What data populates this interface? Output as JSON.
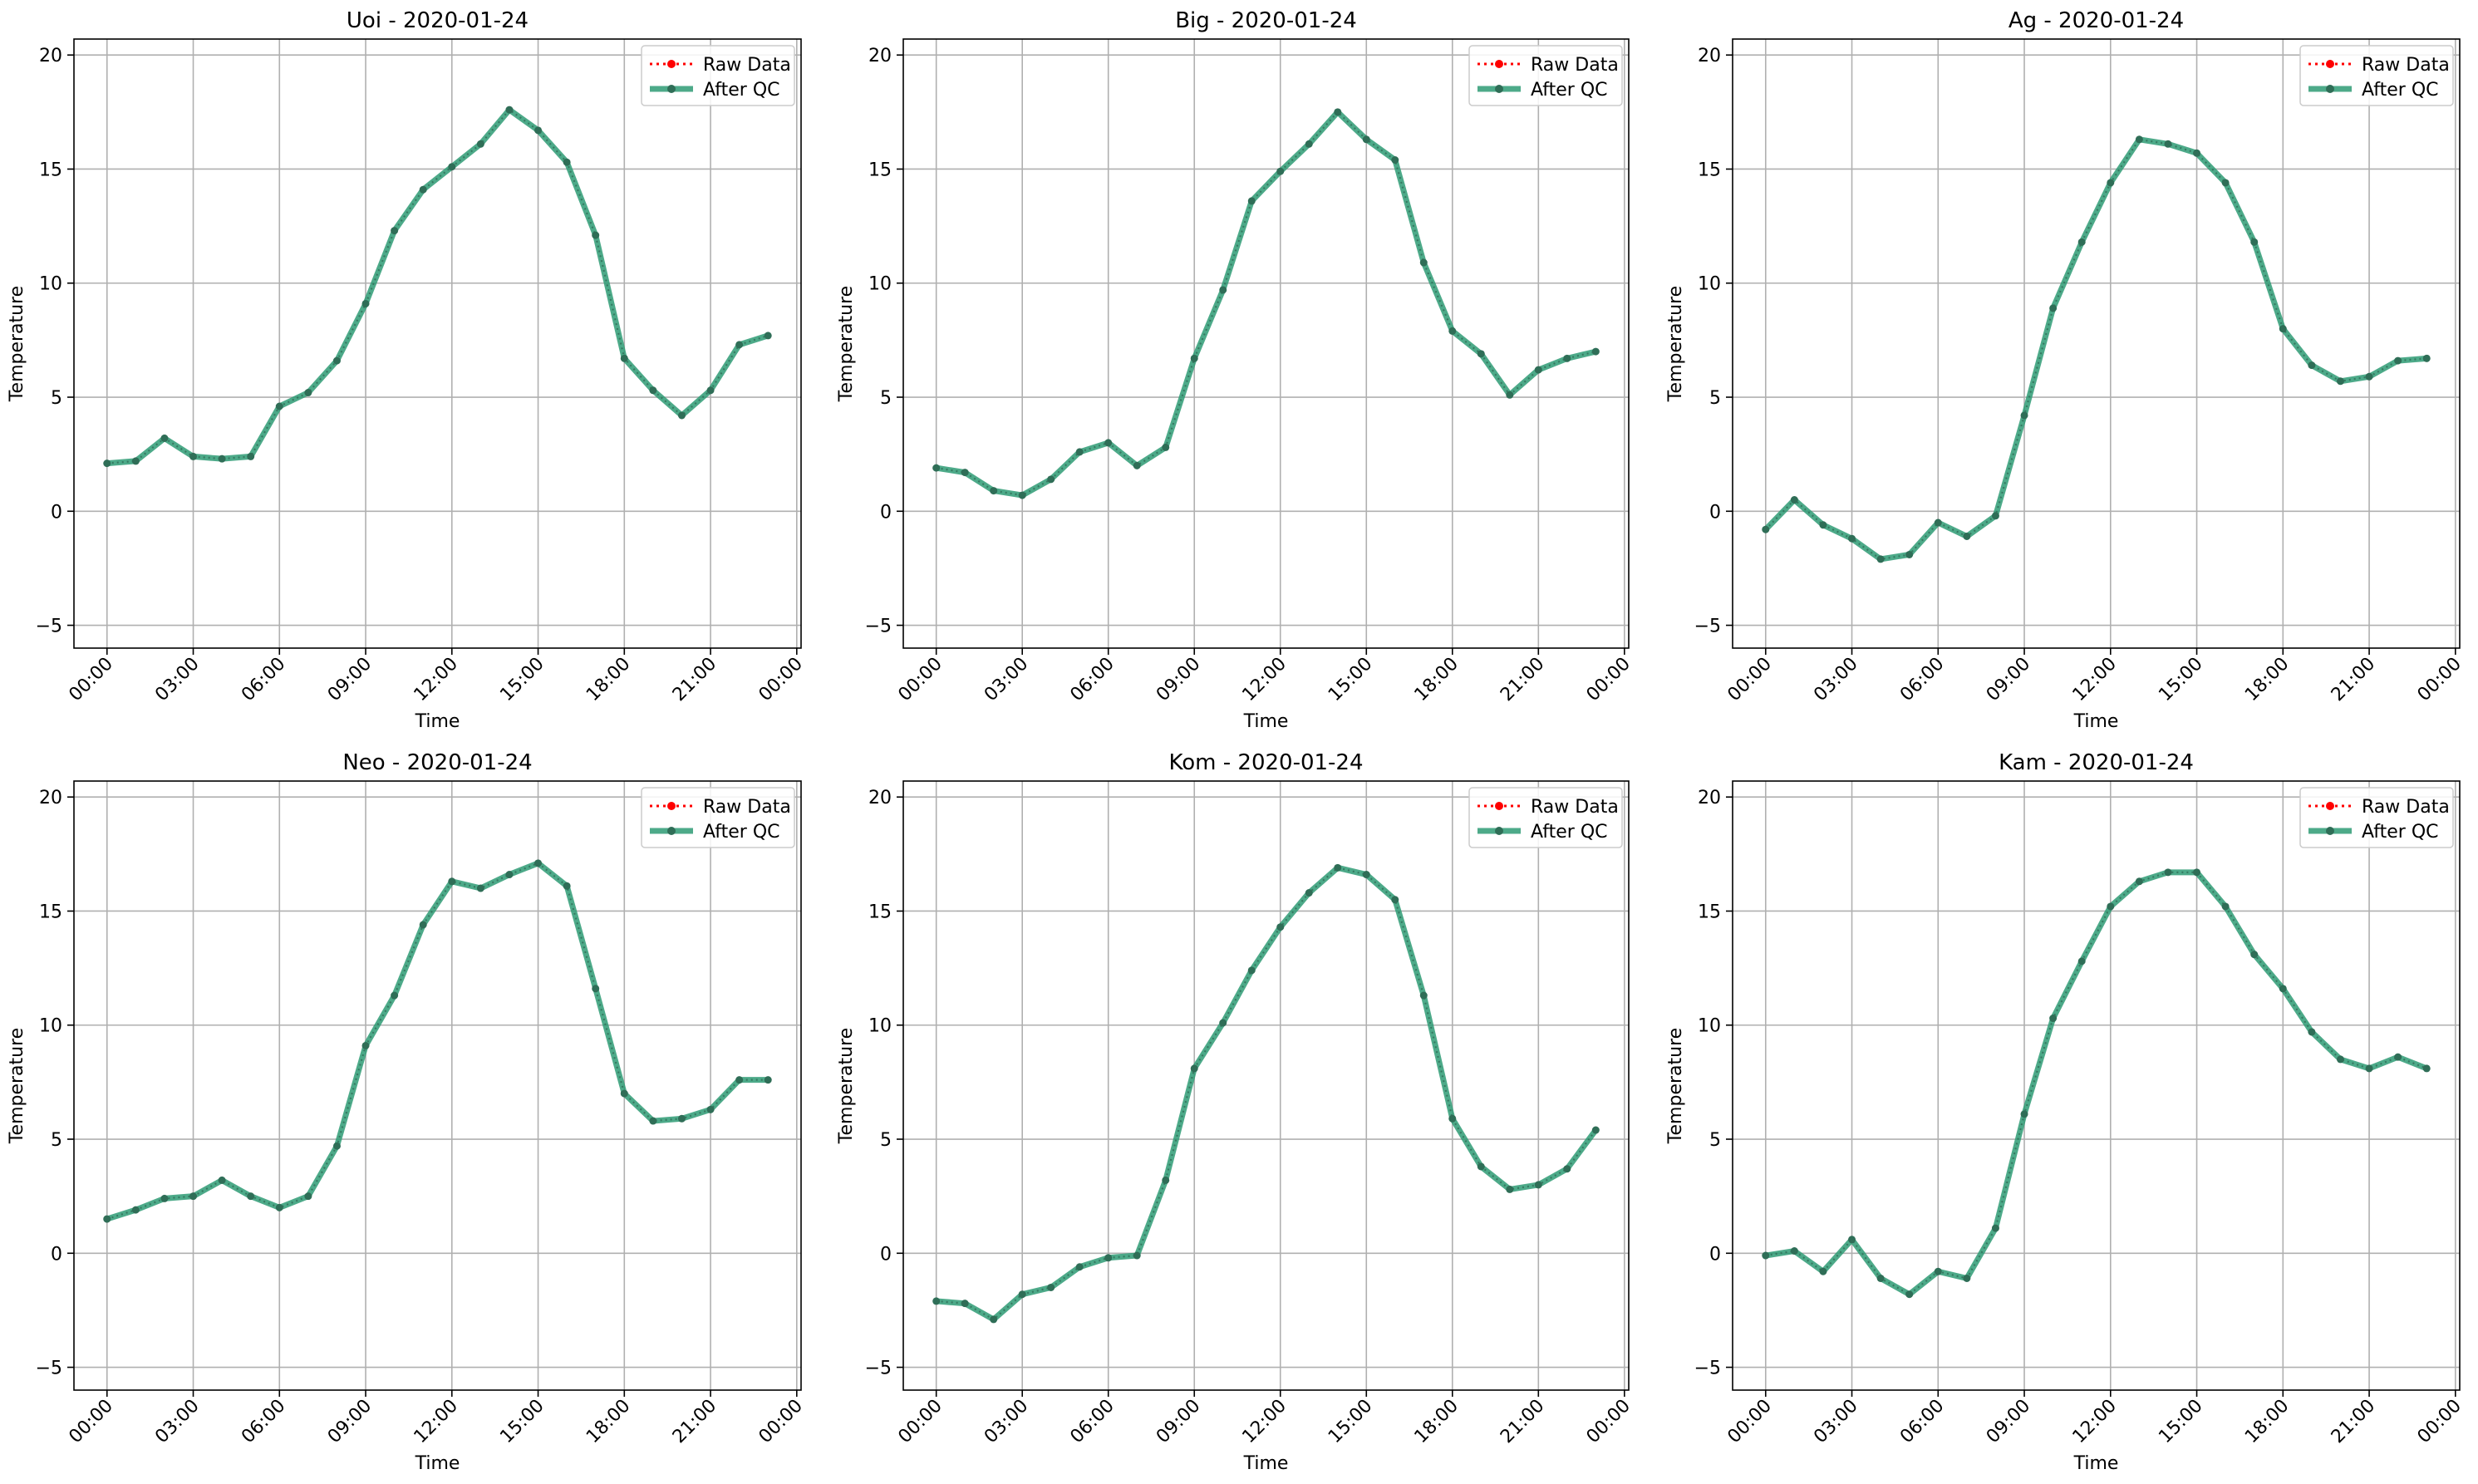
{
  "figure": {
    "x_ticks": [
      "00:00",
      "03:00",
      "06:00",
      "09:00",
      "12:00",
      "15:00",
      "18:00",
      "21:00",
      "00:00"
    ],
    "y_ticks": [
      "−5",
      "0",
      "5",
      "10",
      "15",
      "20"
    ],
    "xlabel": "Time",
    "ylabel": "Temperature",
    "legend": [
      "Raw Data",
      "After QC"
    ],
    "colors": {
      "raw": "#ff0000",
      "qc": "#2e9b74",
      "qc_marker": "#2f6e57",
      "grid": "#b0b0b0"
    }
  },
  "chart_data": [
    {
      "type": "line",
      "title": "Uoi - 2020-01-24",
      "xlabel": "Time",
      "ylabel": "Temperature",
      "x": [
        "00:00",
        "01:00",
        "02:00",
        "03:00",
        "04:00",
        "05:00",
        "06:00",
        "07:00",
        "08:00",
        "09:00",
        "10:00",
        "11:00",
        "12:00",
        "13:00",
        "14:00",
        "15:00",
        "16:00",
        "17:00",
        "18:00",
        "19:00",
        "20:00",
        "21:00",
        "22:00",
        "23:00"
      ],
      "xlim": [
        "00:00",
        "00:00 (next day)"
      ],
      "ylim": [
        -6,
        20.7
      ],
      "grid": true,
      "legend_position": "top-right",
      "series": [
        {
          "name": "Raw Data",
          "style": "dotted",
          "color": "#ff0000",
          "values": [
            2.1,
            2.2,
            3.2,
            2.4,
            2.3,
            2.4,
            4.6,
            5.2,
            6.6,
            9.1,
            12.3,
            14.1,
            15.1,
            16.1,
            17.6,
            16.7,
            15.3,
            12.1,
            6.7,
            5.3,
            4.2,
            5.3,
            7.3,
            7.7
          ]
        },
        {
          "name": "After QC",
          "style": "solid",
          "color": "#2e9b74",
          "values": [
            2.1,
            2.2,
            3.2,
            2.4,
            2.3,
            2.4,
            4.6,
            5.2,
            6.6,
            9.1,
            12.3,
            14.1,
            15.1,
            16.1,
            17.6,
            16.7,
            15.3,
            12.1,
            6.7,
            5.3,
            4.2,
            5.3,
            7.3,
            7.7
          ]
        }
      ]
    },
    {
      "type": "line",
      "title": "Big - 2020-01-24",
      "xlabel": "Time",
      "ylabel": "Temperature",
      "x": [
        "00:00",
        "01:00",
        "02:00",
        "03:00",
        "04:00",
        "05:00",
        "06:00",
        "07:00",
        "08:00",
        "09:00",
        "10:00",
        "11:00",
        "12:00",
        "13:00",
        "14:00",
        "15:00",
        "16:00",
        "17:00",
        "18:00",
        "19:00",
        "20:00",
        "21:00",
        "22:00",
        "23:00"
      ],
      "xlim": [
        "00:00",
        "00:00 (next day)"
      ],
      "ylim": [
        -6,
        20.7
      ],
      "grid": true,
      "legend_position": "top-right",
      "series": [
        {
          "name": "Raw Data",
          "style": "dotted",
          "color": "#ff0000",
          "values": [
            1.9,
            1.7,
            0.9,
            0.7,
            1.4,
            2.6,
            3.0,
            2.0,
            2.8,
            6.7,
            9.7,
            13.6,
            14.9,
            16.1,
            17.5,
            16.3,
            15.4,
            10.9,
            7.9,
            6.9,
            5.1,
            6.2,
            6.7,
            7.0
          ]
        },
        {
          "name": "After QC",
          "style": "solid",
          "color": "#2e9b74",
          "values": [
            1.9,
            1.7,
            0.9,
            0.7,
            1.4,
            2.6,
            3.0,
            2.0,
            2.8,
            6.7,
            9.7,
            13.6,
            14.9,
            16.1,
            17.5,
            16.3,
            15.4,
            10.9,
            7.9,
            6.9,
            5.1,
            6.2,
            6.7,
            7.0
          ]
        }
      ]
    },
    {
      "type": "line",
      "title": "Ag - 2020-01-24",
      "xlabel": "Time",
      "ylabel": "Temperature",
      "x": [
        "00:00",
        "01:00",
        "02:00",
        "03:00",
        "04:00",
        "05:00",
        "06:00",
        "07:00",
        "08:00",
        "09:00",
        "10:00",
        "11:00",
        "12:00",
        "13:00",
        "14:00",
        "15:00",
        "16:00",
        "17:00",
        "18:00",
        "19:00",
        "20:00",
        "21:00",
        "22:00",
        "23:00"
      ],
      "xlim": [
        "00:00",
        "00:00 (next day)"
      ],
      "ylim": [
        -6,
        20.7
      ],
      "grid": true,
      "legend_position": "top-right",
      "series": [
        {
          "name": "Raw Data",
          "style": "dotted",
          "color": "#ff0000",
          "values": [
            -0.8,
            0.5,
            -0.6,
            -1.2,
            -2.1,
            -1.9,
            -0.5,
            -1.1,
            -0.2,
            4.2,
            8.9,
            11.8,
            14.4,
            16.3,
            16.1,
            15.7,
            14.4,
            11.8,
            8.0,
            6.4,
            5.7,
            5.9,
            6.6,
            6.7
          ]
        },
        {
          "name": "After QC",
          "style": "solid",
          "color": "#2e9b74",
          "values": [
            -0.8,
            0.5,
            -0.6,
            -1.2,
            -2.1,
            -1.9,
            -0.5,
            -1.1,
            -0.2,
            4.2,
            8.9,
            11.8,
            14.4,
            16.3,
            16.1,
            15.7,
            14.4,
            11.8,
            8.0,
            6.4,
            5.7,
            5.9,
            6.6,
            6.7
          ]
        }
      ]
    },
    {
      "type": "line",
      "title": "Neo - 2020-01-24",
      "xlabel": "Time",
      "ylabel": "Temperature",
      "x": [
        "00:00",
        "01:00",
        "02:00",
        "03:00",
        "04:00",
        "05:00",
        "06:00",
        "07:00",
        "08:00",
        "09:00",
        "10:00",
        "11:00",
        "12:00",
        "13:00",
        "14:00",
        "15:00",
        "16:00",
        "17:00",
        "18:00",
        "19:00",
        "20:00",
        "21:00",
        "22:00",
        "23:00"
      ],
      "xlim": [
        "00:00",
        "00:00 (next day)"
      ],
      "ylim": [
        -6,
        20.7
      ],
      "grid": true,
      "legend_position": "top-right",
      "series": [
        {
          "name": "Raw Data",
          "style": "dotted",
          "color": "#ff0000",
          "values": [
            1.5,
            1.9,
            2.4,
            2.5,
            3.2,
            2.5,
            2.0,
            2.5,
            4.7,
            9.1,
            11.3,
            14.4,
            16.3,
            16.0,
            16.6,
            17.1,
            16.1,
            11.6,
            7.0,
            5.8,
            5.9,
            6.3,
            7.6,
            7.6
          ]
        },
        {
          "name": "After QC",
          "style": "solid",
          "color": "#2e9b74",
          "values": [
            1.5,
            1.9,
            2.4,
            2.5,
            3.2,
            2.5,
            2.0,
            2.5,
            4.7,
            9.1,
            11.3,
            14.4,
            16.3,
            16.0,
            16.6,
            17.1,
            16.1,
            11.6,
            7.0,
            5.8,
            5.9,
            6.3,
            7.6,
            7.6
          ]
        }
      ]
    },
    {
      "type": "line",
      "title": "Kom - 2020-01-24",
      "xlabel": "Time",
      "ylabel": "Temperature",
      "x": [
        "00:00",
        "01:00",
        "02:00",
        "03:00",
        "04:00",
        "05:00",
        "06:00",
        "07:00",
        "08:00",
        "09:00",
        "10:00",
        "11:00",
        "12:00",
        "13:00",
        "14:00",
        "15:00",
        "16:00",
        "17:00",
        "18:00",
        "19:00",
        "20:00",
        "21:00",
        "22:00",
        "23:00"
      ],
      "xlim": [
        "00:00",
        "00:00 (next day)"
      ],
      "ylim": [
        -6,
        20.7
      ],
      "grid": true,
      "legend_position": "top-right",
      "series": [
        {
          "name": "Raw Data",
          "style": "dotted",
          "color": "#ff0000",
          "values": [
            -2.1,
            -2.2,
            -2.9,
            -1.8,
            -1.5,
            -0.6,
            -0.2,
            -0.1,
            3.2,
            8.1,
            10.1,
            12.4,
            14.3,
            15.8,
            16.9,
            16.6,
            15.5,
            11.3,
            5.9,
            3.8,
            2.8,
            3.0,
            3.7,
            5.4
          ]
        },
        {
          "name": "After QC",
          "style": "solid",
          "color": "#2e9b74",
          "values": [
            -2.1,
            -2.2,
            -2.9,
            -1.8,
            -1.5,
            -0.6,
            -0.2,
            -0.1,
            3.2,
            8.1,
            10.1,
            12.4,
            14.3,
            15.8,
            16.9,
            16.6,
            15.5,
            11.3,
            5.9,
            3.8,
            2.8,
            3.0,
            3.7,
            5.4
          ]
        }
      ]
    },
    {
      "type": "line",
      "title": "Kam - 2020-01-24",
      "xlabel": "Time",
      "ylabel": "Temperature",
      "x": [
        "00:00",
        "01:00",
        "02:00",
        "03:00",
        "04:00",
        "05:00",
        "06:00",
        "07:00",
        "08:00",
        "09:00",
        "10:00",
        "11:00",
        "12:00",
        "13:00",
        "14:00",
        "15:00",
        "16:00",
        "17:00",
        "18:00",
        "19:00",
        "20:00",
        "21:00",
        "22:00",
        "23:00"
      ],
      "xlim": [
        "00:00",
        "00:00 (next day)"
      ],
      "ylim": [
        -6,
        20.7
      ],
      "grid": true,
      "legend_position": "top-right",
      "series": [
        {
          "name": "Raw Data",
          "style": "dotted",
          "color": "#ff0000",
          "values": [
            -0.1,
            0.1,
            -0.8,
            0.6,
            -1.1,
            -1.8,
            -0.8,
            -1.1,
            1.1,
            6.1,
            10.3,
            12.8,
            15.2,
            16.3,
            16.7,
            16.7,
            15.2,
            13.1,
            11.6,
            9.7,
            8.5,
            8.1,
            8.6,
            8.1
          ]
        },
        {
          "name": "After QC",
          "style": "solid",
          "color": "#2e9b74",
          "values": [
            -0.1,
            0.1,
            -0.8,
            0.6,
            -1.1,
            -1.8,
            -0.8,
            -1.1,
            1.1,
            6.1,
            10.3,
            12.8,
            15.2,
            16.3,
            16.7,
            16.7,
            15.2,
            13.1,
            11.6,
            9.7,
            8.5,
            8.1,
            8.6,
            8.1
          ]
        }
      ]
    }
  ]
}
